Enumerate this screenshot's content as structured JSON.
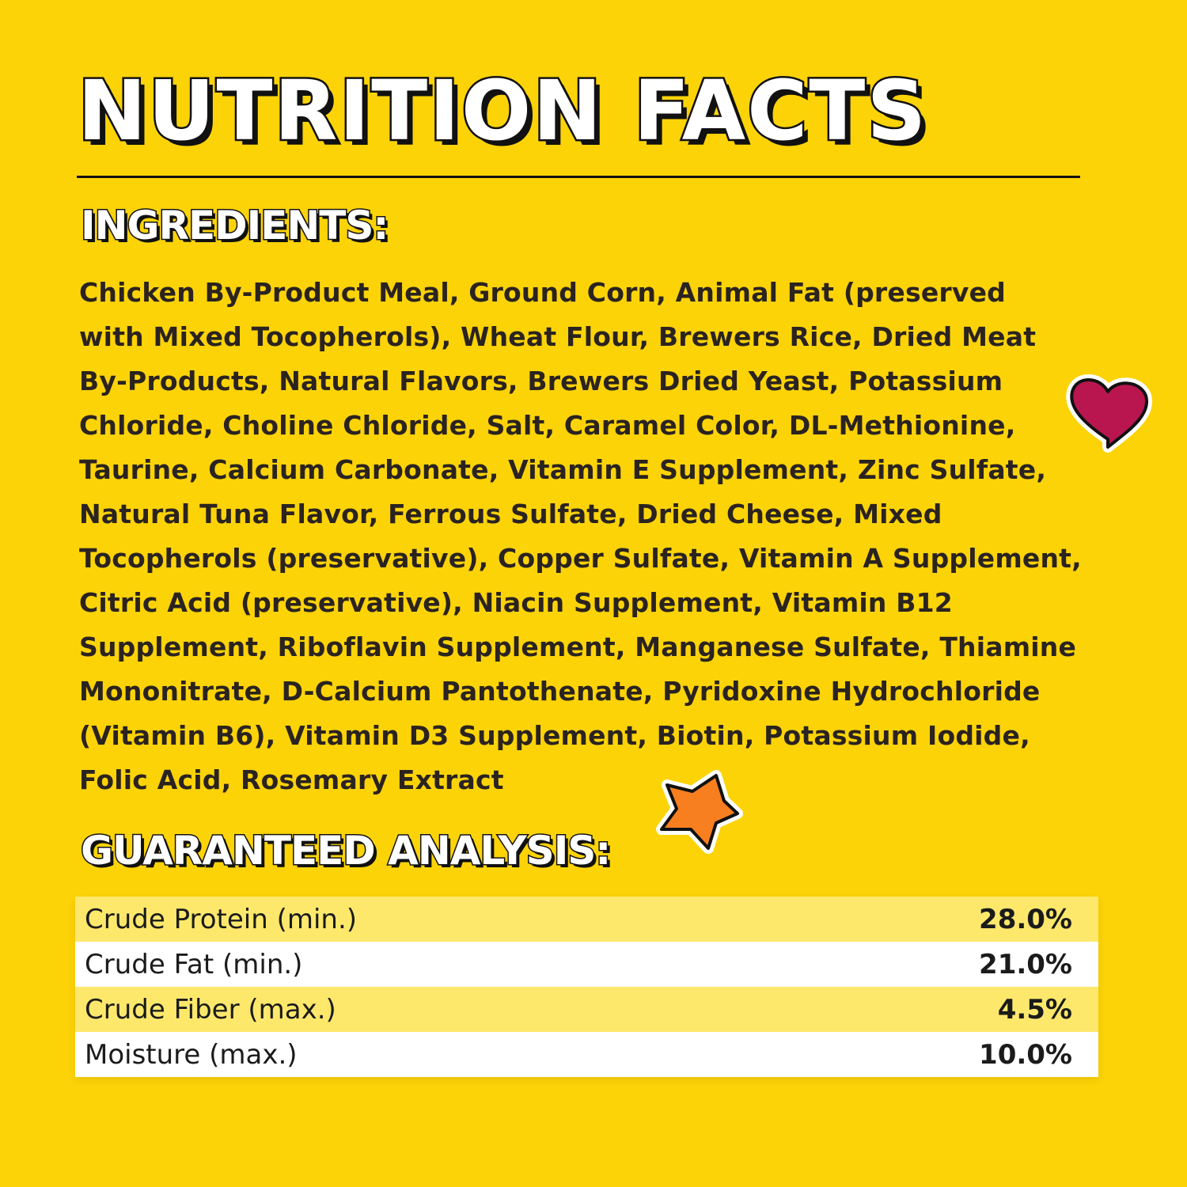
{
  "title": "NUTRITION FACTS",
  "ingredients": {
    "heading": "INGREDIENTS:",
    "lines": [
      "Chicken By-Product Meal, Ground Corn, Animal Fat (preserved",
      "with Mixed Tocopherols), Wheat Flour, Brewers Rice, Dried Meat",
      "By-Products, Natural Flavors, Brewers Dried Yeast, Potassium",
      "Chloride, Choline Chloride, Salt, Caramel Color, DL-Methionine,",
      "Taurine, Calcium Carbonate, Vitamin E Supplement, Zinc Sulfate,",
      "Natural Tuna Flavor, Ferrous Sulfate, Dried Cheese, Mixed",
      "Tocopherols (preservative), Copper Sulfate, Vitamin A Supplement,",
      "Citric Acid (preservative), Niacin Supplement, Vitamin B12",
      "Supplement, Riboflavin Supplement, Manganese Sulfate, Thiamine",
      "Mononitrate, D-Calcium Pantothenate, Pyridoxine Hydrochloride",
      "(Vitamin B6), Vitamin D3 Supplement, Biotin, Potassium Iodide,",
      "Folic Acid, Rosemary Extract"
    ]
  },
  "analysis": {
    "heading": "GUARANTEED ANALYSIS:",
    "rows": [
      [
        "Crude Protein (min.)",
        "28.0%"
      ],
      [
        "Crude Fat (min.)",
        "21.0%"
      ],
      [
        "Crude Fiber (max.)",
        "4.5%"
      ],
      [
        "Moisture (max.)",
        "10.0%"
      ]
    ]
  }
}
